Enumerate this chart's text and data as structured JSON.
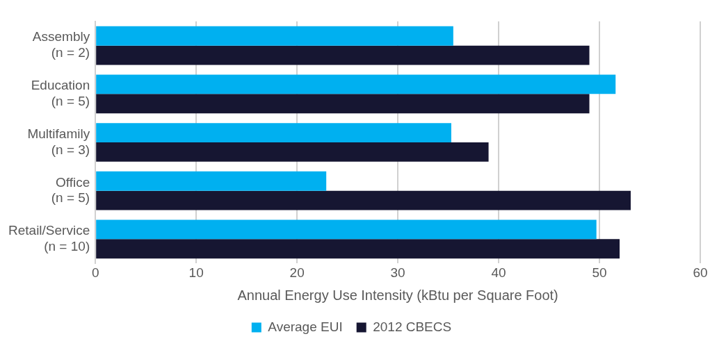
{
  "chart_data": {
    "type": "bar",
    "orientation": "horizontal",
    "xlabel": "Annual Energy Use Intensity (kBtu per Square Foot)",
    "categories": [
      "Assembly\n(n = 2)",
      "Education\n(n = 5)",
      "Multifamily\n(n = 3)",
      "Office\n(n = 5)",
      "Retail/Service\n(n = 10)"
    ],
    "series": [
      {
        "name": "Average EUI",
        "color": "#00b0f0",
        "values": [
          35.5,
          51.6,
          35.3,
          22.9,
          49.7
        ]
      },
      {
        "name": "2012 CBECS",
        "color": "#161632",
        "values": [
          49.0,
          49.0,
          39.0,
          53.1,
          52.0
        ]
      }
    ],
    "xlim": [
      0,
      60
    ],
    "xticks": [
      0,
      10,
      20,
      30,
      40,
      50,
      60
    ],
    "grid": "x",
    "legend": "bottom"
  }
}
